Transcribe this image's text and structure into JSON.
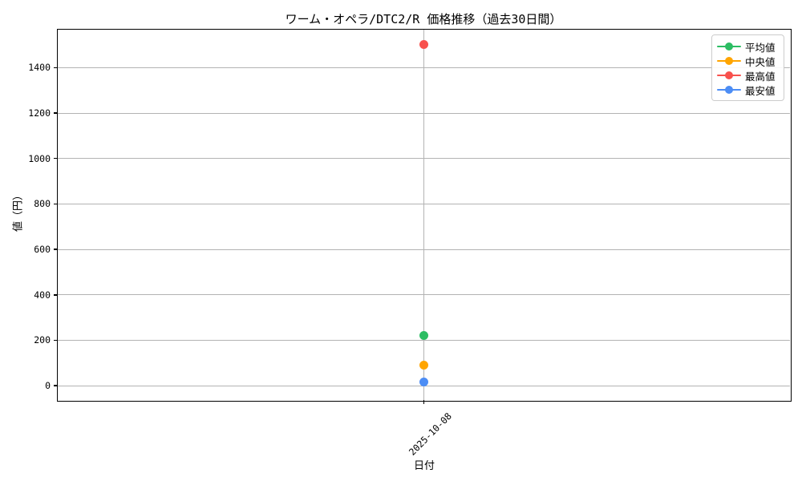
{
  "title": "ワーム・オペラ/DTC2/R 価格推移（過去30日間）",
  "chart_data": {
    "type": "line",
    "x": [
      "2025-10-08"
    ],
    "xlabel": "日付",
    "ylabel": "値（円）",
    "ylim": [
      -63,
      1567
    ],
    "yticks": [
      0,
      200,
      400,
      600,
      800,
      1000,
      1200,
      1400
    ],
    "grid": true,
    "legend_position": "upper right",
    "series": [
      {
        "id": "average",
        "name": "平均値",
        "color": "#2cbd63",
        "values": [
          220
        ]
      },
      {
        "id": "median",
        "name": "中央値",
        "color": "#ffa500",
        "values": [
          90
        ]
      },
      {
        "id": "highest",
        "name": "最高値",
        "color": "#f8514d",
        "values": [
          1500
        ]
      },
      {
        "id": "lowest",
        "name": "最安値",
        "color": "#4c8df5",
        "values": [
          15
        ]
      }
    ]
  }
}
